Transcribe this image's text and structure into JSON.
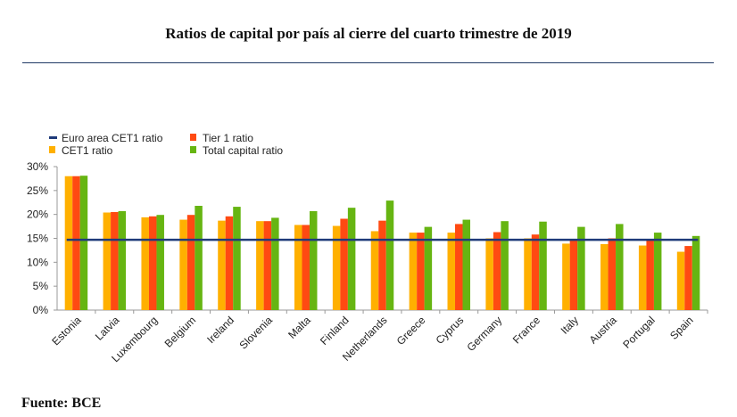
{
  "title": "Ratios de capital por país al cierre del cuarto trimestre de 2019",
  "source": "Fuente: BCE",
  "chart_data": {
    "type": "bar",
    "categories": [
      "Estonia",
      "Latvia",
      "Luxembourg",
      "Belgium",
      "Ireland",
      "Slovenia",
      "Malta",
      "Finland",
      "Netherlands",
      "Greece",
      "Cyprus",
      "Germany",
      "France",
      "Italy",
      "Austria",
      "Portugal",
      "Spain"
    ],
    "series": [
      {
        "name": "CET1  ratio",
        "color": "#ffb000",
        "values": [
          28.0,
          20.4,
          19.4,
          18.9,
          18.7,
          18.6,
          17.8,
          17.6,
          16.5,
          16.2,
          16.2,
          15.0,
          15.0,
          13.9,
          13.8,
          13.5,
          12.2
        ]
      },
      {
        "name": "Tier 1 ratio",
        "color": "#ff4a12",
        "values": [
          28.0,
          20.5,
          19.6,
          19.9,
          19.6,
          18.6,
          17.8,
          19.1,
          18.7,
          16.2,
          18.0,
          16.3,
          15.8,
          14.7,
          15.0,
          14.7,
          13.4
        ]
      },
      {
        "name": "Total capital ratio",
        "color": "#66b512",
        "values": [
          28.1,
          20.7,
          19.9,
          21.8,
          21.6,
          19.3,
          20.7,
          21.4,
          22.9,
          17.4,
          18.9,
          18.6,
          18.5,
          17.4,
          18.0,
          16.2,
          15.5
        ]
      }
    ],
    "reference_line": {
      "name": "Euro area CET1  ratio",
      "value": 14.7,
      "color": "#1f3b7a"
    },
    "ylim": [
      0,
      30
    ],
    "yticks": [
      0,
      5,
      10,
      15,
      20,
      25,
      30
    ],
    "ytick_labels": [
      "0%",
      "5%",
      "10%",
      "15%",
      "20%",
      "25%",
      "30%"
    ],
    "xlabel": "",
    "ylabel": "",
    "legend_position": "top-left"
  }
}
